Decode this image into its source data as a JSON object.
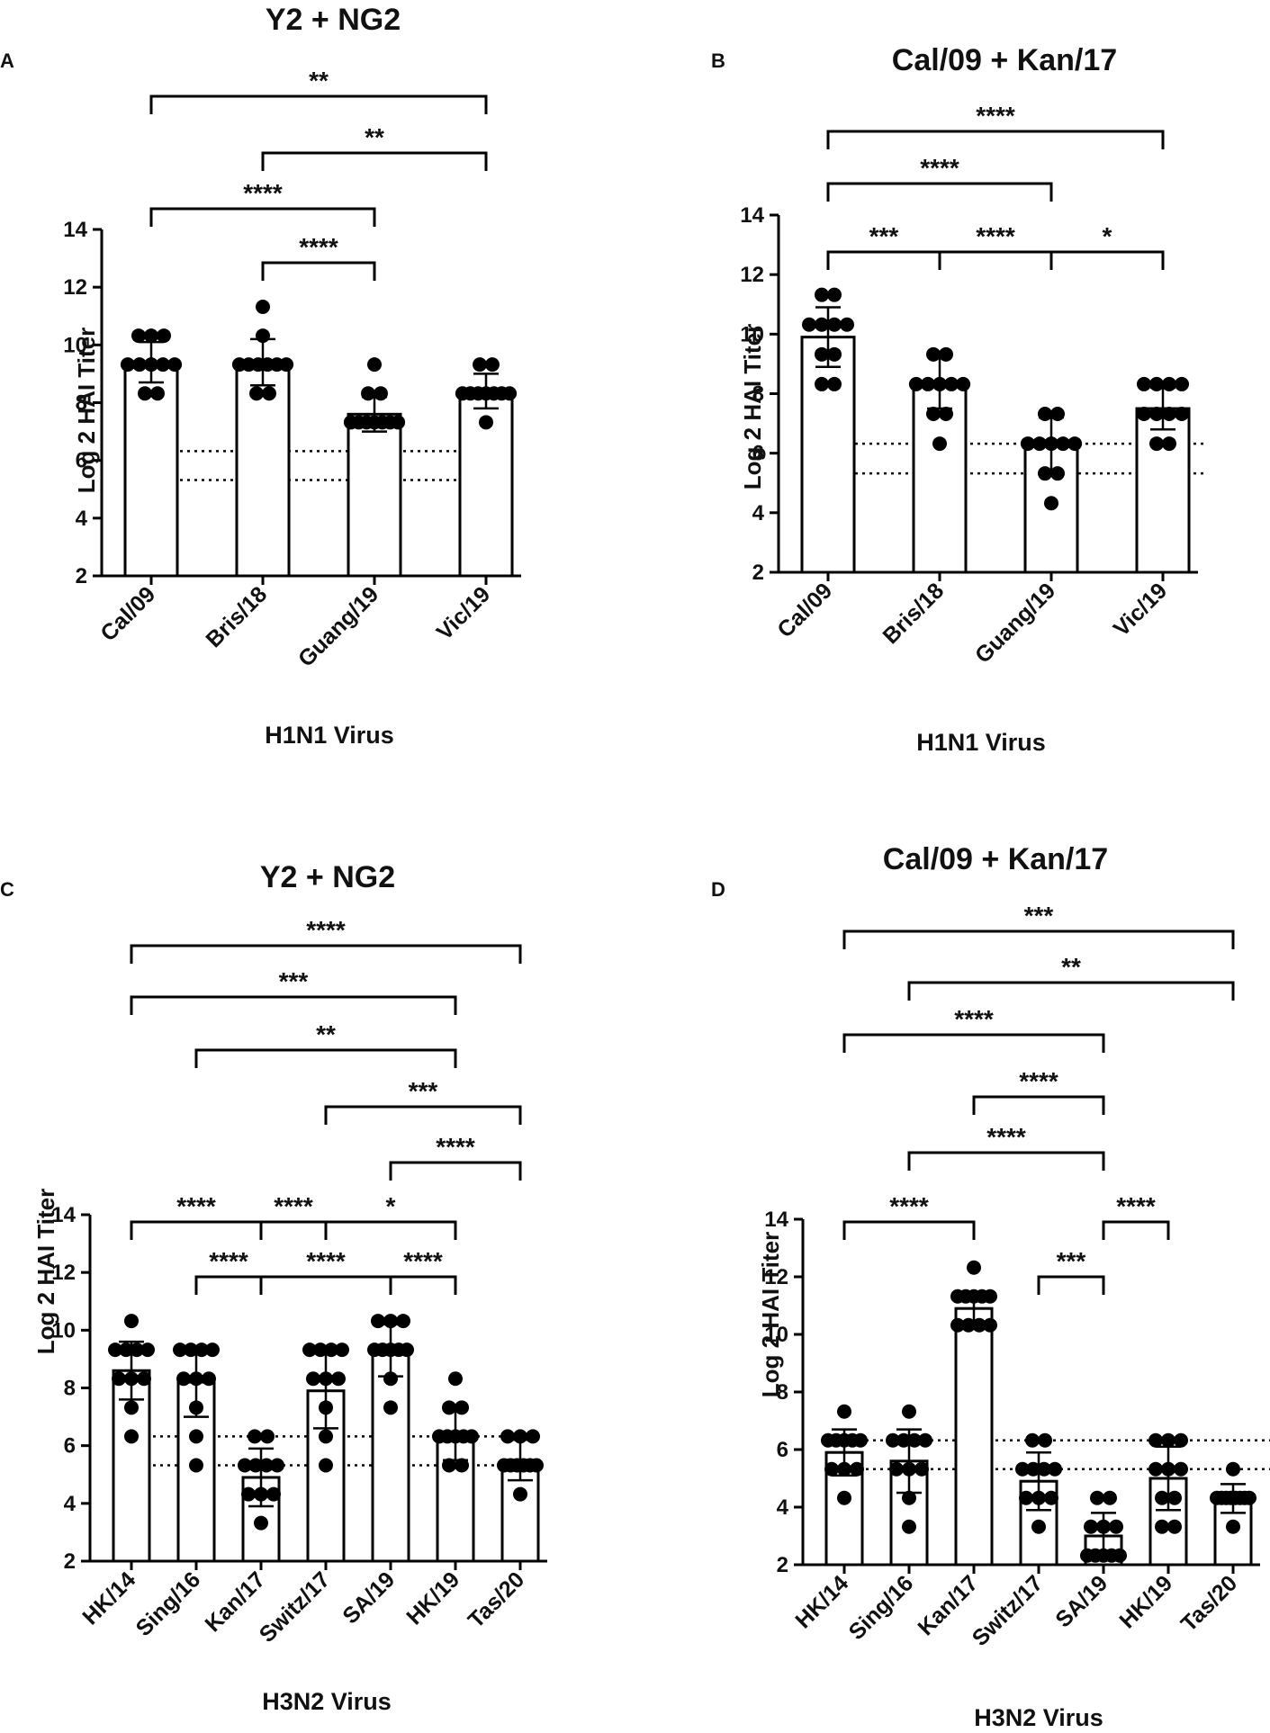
{
  "chart_data": [
    {
      "panel": "A",
      "type": "bar",
      "title": "Y2 + NG2",
      "xlabel": "H1N1 Virus",
      "ylabel": "Log 2 HAI Titer",
      "ylim": [
        2,
        14
      ],
      "yticks": [
        2,
        4,
        6,
        8,
        10,
        12,
        14
      ],
      "ref_lines": [
        5.32,
        6.32
      ],
      "categories": [
        "Cal/09",
        "Bris/18",
        "Guang/19",
        "Vic/19"
      ],
      "values": [
        9.4,
        9.4,
        7.6,
        8.4
      ],
      "errors": [
        0.7,
        0.8,
        0.6,
        0.6
      ],
      "points": [
        [
          8.32,
          8.32,
          9.32,
          9.32,
          9.32,
          9.32,
          10.32,
          10.32,
          10.32,
          9.32
        ],
        [
          8.32,
          8.32,
          9.32,
          9.32,
          9.32,
          9.32,
          9.32,
          10.32,
          11.32,
          9.32
        ],
        [
          7.32,
          7.32,
          7.32,
          7.32,
          7.32,
          7.32,
          8.32,
          8.32,
          9.32,
          7.32
        ],
        [
          7.32,
          8.32,
          8.32,
          8.32,
          8.32,
          8.32,
          8.32,
          9.32,
          9.32,
          8.32
        ]
      ],
      "comparisons": [
        {
          "from": 0,
          "to": 3,
          "label": "**"
        },
        {
          "from": 1,
          "to": 3,
          "label": "**"
        },
        {
          "from": 0,
          "to": 2,
          "label": "****"
        },
        {
          "from": 1,
          "to": 2,
          "label": "****"
        }
      ]
    },
    {
      "panel": "B",
      "type": "bar",
      "title": "Cal/09 + Kan/17",
      "xlabel": "H1N1 Virus",
      "ylabel": "Log 2 HAI Titer",
      "ylim": [
        2,
        14
      ],
      "yticks": [
        2,
        4,
        6,
        8,
        10,
        12,
        14
      ],
      "ref_lines": [
        5.32,
        6.32
      ],
      "categories": [
        "Cal/09",
        "Bris/18",
        "Guang/19",
        "Vic/19"
      ],
      "values": [
        9.9,
        8.4,
        6.3,
        7.5
      ],
      "errors": [
        1.0,
        0.9,
        0.9,
        0.7
      ],
      "points": [
        [
          8.32,
          8.32,
          9.32,
          9.32,
          10.32,
          10.32,
          10.32,
          10.32,
          11.32,
          11.32
        ],
        [
          6.32,
          7.32,
          7.32,
          8.32,
          8.32,
          8.32,
          8.32,
          8.32,
          9.32,
          9.32
        ],
        [
          4.32,
          5.32,
          5.32,
          6.32,
          6.32,
          6.32,
          6.32,
          7.32,
          7.32,
          6.32
        ],
        [
          6.32,
          6.32,
          7.32,
          7.32,
          7.32,
          7.32,
          8.32,
          8.32,
          8.32,
          8.32
        ]
      ],
      "comparisons": [
        {
          "from": 0,
          "to": 3,
          "label": "****"
        },
        {
          "from": 0,
          "to": 2,
          "label": "****"
        },
        {
          "from": 0,
          "to": 1,
          "label": "***"
        },
        {
          "from": 1,
          "to": 2,
          "label": "****"
        },
        {
          "from": 2,
          "to": 3,
          "label": "*"
        }
      ]
    },
    {
      "panel": "C",
      "type": "bar",
      "title": "Y2 + NG2",
      "xlabel": "H3N2 Virus",
      "ylabel": "Log 2 HAI Titer",
      "ylim": [
        2,
        14
      ],
      "yticks": [
        2,
        4,
        6,
        8,
        10,
        12,
        14
      ],
      "ref_lines": [
        5.32,
        6.32
      ],
      "categories": [
        "HK/14",
        "Sing/16",
        "Kan/17",
        "Switz/17",
        "SA/19",
        "HK/19",
        "Tas/20"
      ],
      "values": [
        8.6,
        8.2,
        4.9,
        7.9,
        9.3,
        6.4,
        5.5
      ],
      "errors": [
        1.0,
        1.2,
        1.0,
        1.3,
        0.9,
        0.9,
        0.7
      ],
      "points": [
        [
          6.32,
          7.32,
          8.32,
          8.32,
          9.32,
          9.32,
          9.32,
          8.32,
          10.32,
          9.32
        ],
        [
          5.32,
          6.32,
          7.32,
          8.32,
          8.32,
          9.32,
          9.32,
          9.32,
          9.32,
          8.32
        ],
        [
          3.32,
          4.32,
          4.32,
          4.32,
          5.32,
          5.32,
          5.32,
          6.32,
          6.32,
          5.32
        ],
        [
          5.32,
          6.32,
          7.32,
          8.32,
          8.32,
          9.32,
          9.32,
          9.32,
          9.32,
          8.32
        ],
        [
          7.32,
          8.32,
          9.32,
          9.32,
          9.32,
          10.32,
          10.32,
          10.32,
          9.32,
          9.32
        ],
        [
          5.32,
          5.32,
          6.32,
          6.32,
          6.32,
          6.32,
          7.32,
          7.32,
          8.32,
          6.32
        ],
        [
          4.32,
          5.32,
          5.32,
          5.32,
          5.32,
          6.32,
          6.32,
          6.32,
          5.32,
          5.32
        ]
      ],
      "comparisons": [
        {
          "from": 0,
          "to": 6,
          "label": "****"
        },
        {
          "from": 0,
          "to": 5,
          "label": "***"
        },
        {
          "from": 1,
          "to": 5,
          "label": "**"
        },
        {
          "from": 3,
          "to": 6,
          "label": "***"
        },
        {
          "from": 4,
          "to": 6,
          "label": "****"
        },
        {
          "from": 0,
          "to": 2,
          "label": "****"
        },
        {
          "from": 2,
          "to": 3,
          "label": "****"
        },
        {
          "from": 3,
          "to": 5,
          "label": "*"
        },
        {
          "from": 1,
          "to": 2,
          "label": "****"
        },
        {
          "from": 2,
          "to": 4,
          "label": "****"
        },
        {
          "from": 4,
          "to": 5,
          "label": "****"
        }
      ]
    },
    {
      "panel": "D",
      "type": "bar",
      "title": "Cal/09 + Kan/17",
      "xlabel": "H3N2 Virus",
      "ylabel": "Log 2 HAI Titer",
      "ylim": [
        2,
        14
      ],
      "yticks": [
        2,
        4,
        6,
        8,
        10,
        12,
        14
      ],
      "ref_lines": [
        5.32,
        6.32
      ],
      "categories": [
        "HK/14",
        "Sing/16",
        "Kan/17",
        "Switz/17",
        "SA/19",
        "HK/19",
        "Tas/20"
      ],
      "values": [
        5.9,
        5.6,
        10.9,
        4.9,
        3.0,
        5.0,
        4.3
      ],
      "errors": [
        0.8,
        1.1,
        0.5,
        1.0,
        0.8,
        1.1,
        0.5
      ],
      "points": [
        [
          4.32,
          5.32,
          5.32,
          5.32,
          6.32,
          6.32,
          6.32,
          6.32,
          7.32,
          6.32
        ],
        [
          3.32,
          4.32,
          5.32,
          5.32,
          6.32,
          6.32,
          6.32,
          6.32,
          7.32,
          5.32
        ],
        [
          10.32,
          10.32,
          10.32,
          11.32,
          11.32,
          11.32,
          11.32,
          11.32,
          12.32,
          10.32
        ],
        [
          3.32,
          4.32,
          4.32,
          5.32,
          5.32,
          5.32,
          5.32,
          6.32,
          6.32,
          4.32
        ],
        [
          2.32,
          2.32,
          2.32,
          2.32,
          3.32,
          3.32,
          3.32,
          4.32,
          4.32,
          2.32
        ],
        [
          3.32,
          3.32,
          4.32,
          4.32,
          5.32,
          5.32,
          6.32,
          6.32,
          6.32,
          5.32
        ],
        [
          3.32,
          4.32,
          4.32,
          4.32,
          4.32,
          4.32,
          4.32,
          4.32,
          5.32,
          4.32
        ]
      ],
      "comparisons": [
        {
          "from": 0,
          "to": 6,
          "label": "***"
        },
        {
          "from": 1,
          "to": 6,
          "label": "**"
        },
        {
          "from": 0,
          "to": 4,
          "label": "****"
        },
        {
          "from": 2,
          "to": 4,
          "label": "****"
        },
        {
          "from": 1,
          "to": 4,
          "label": "****"
        },
        {
          "from": 0,
          "to": 2,
          "label": "****"
        },
        {
          "from": 4,
          "to": 5,
          "label": "****"
        },
        {
          "from": 3,
          "to": 4,
          "label": "***"
        }
      ]
    }
  ]
}
